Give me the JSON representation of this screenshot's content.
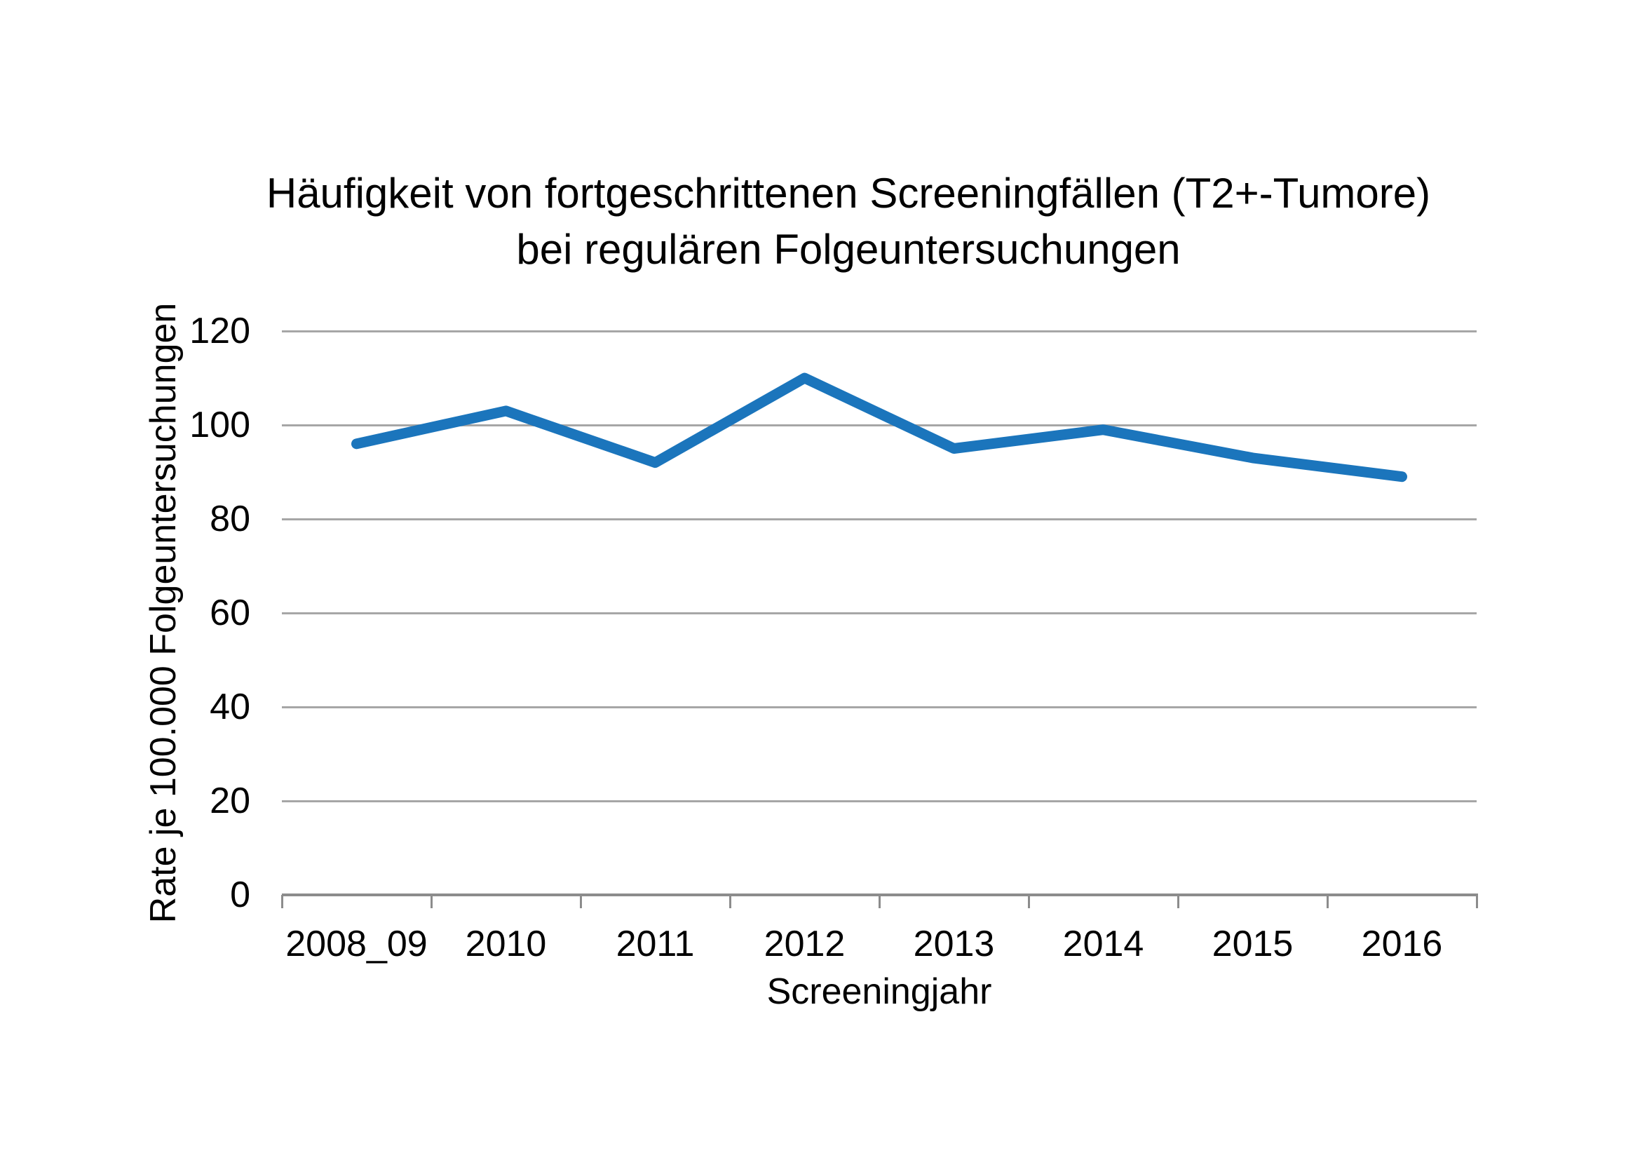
{
  "chart": {
    "title_line1": "Häufigkeit von fortgeschrittenen Screeningfällen (T2+-Tumore)",
    "title_line2": "bei regulären Folgeuntersuchungen",
    "ylabel": "Rate je 100.000 Folgeuntersuchungen",
    "xlabel": "Screeningjahr"
  },
  "chart_data": {
    "type": "line",
    "title": "Häufigkeit von fortgeschrittenen Screeningfällen (T2+-Tumore) bei regulären Folgeuntersuchungen",
    "categories": [
      "2008_09",
      "2010",
      "2011",
      "2012",
      "2013",
      "2014",
      "2015",
      "2016"
    ],
    "series": [
      {
        "name": "Rate je 100.000 Folgeuntersuchungen",
        "values": [
          96,
          103,
          92,
          110,
          95,
          99,
          93,
          89
        ]
      }
    ],
    "xlabel": "Screeningjahr",
    "ylabel": "Rate je 100.000 Folgeuntersuchungen",
    "ylim": [
      0,
      120
    ],
    "yticks": [
      0,
      20,
      40,
      60,
      80,
      100,
      120
    ],
    "grid": "horizontal",
    "legend": "none",
    "colors": {
      "series": "#1B75BC",
      "gridline": "#A6A6A6",
      "axis": "#8C8C8C",
      "text": "#000000",
      "background": "#FFFFFF"
    }
  }
}
